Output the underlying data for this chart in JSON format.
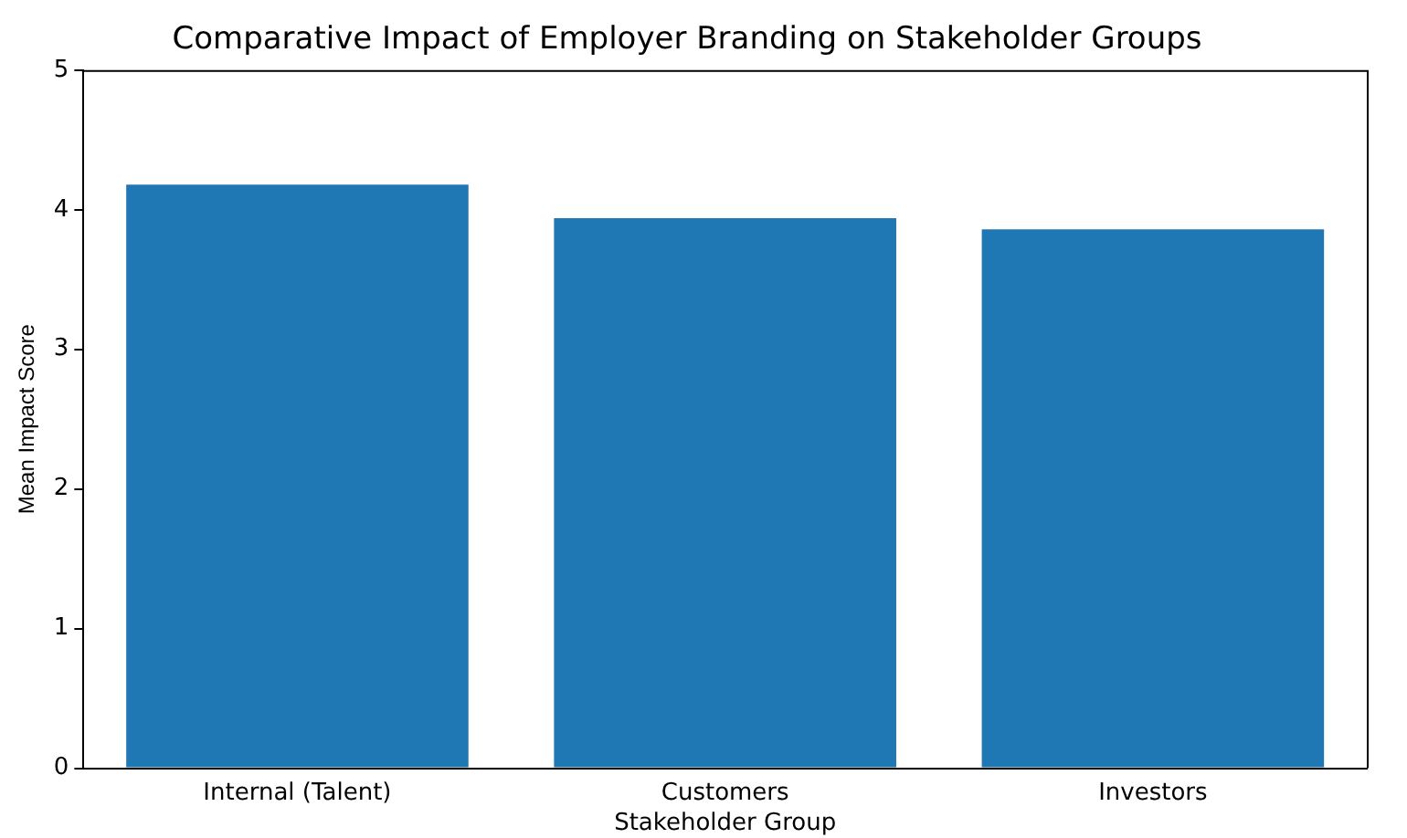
{
  "chart_data": {
    "type": "bar",
    "title": "Comparative Impact of Employer Branding on Stakeholder Groups",
    "xlabel": "Stakeholder Group",
    "ylabel": "Mean Impact Score",
    "categories": [
      "Internal (Talent)",
      "Customers",
      "Investors"
    ],
    "values": [
      4.18,
      3.94,
      3.86
    ],
    "color": "#1f77b4",
    "ylim": [
      0,
      5
    ],
    "yticks": [
      0,
      1,
      2,
      3,
      4,
      5
    ],
    "grid": false,
    "legend": false
  }
}
